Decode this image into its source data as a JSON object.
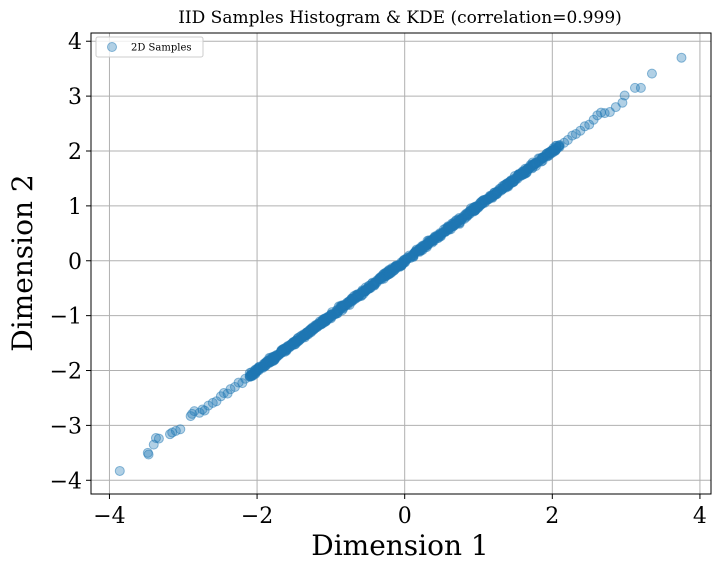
{
  "chart_data": {
    "type": "scatter",
    "title": "IID Samples Histogram & KDE (correlation=0.999)",
    "xlabel": "Dimension 1",
    "ylabel": "Dimension 2",
    "xlim": [
      -4.25,
      4.15
    ],
    "ylim": [
      -4.25,
      4.15
    ],
    "xticks": [
      -4,
      -2,
      0,
      2,
      4
    ],
    "yticks": [
      -4,
      -3,
      -2,
      -1,
      0,
      1,
      2,
      3,
      4
    ],
    "xtick_labels": [
      "−4",
      "−2",
      "0",
      "2",
      "4"
    ],
    "ytick_labels": [
      "−4",
      "−3",
      "−2",
      "−1",
      "0",
      "1",
      "2",
      "3",
      "4"
    ],
    "grid": true,
    "legend": {
      "position": "upper-left",
      "entries": [
        "2D Samples"
      ]
    },
    "series": [
      {
        "name": "2D Samples",
        "color": "#1f77b4",
        "alpha": 0.35,
        "points": [
          [
            -3.86,
            -3.83
          ],
          [
            -3.48,
            -3.5
          ],
          [
            -3.47,
            -3.53
          ],
          [
            -3.4,
            -3.35
          ],
          [
            -3.37,
            -3.23
          ],
          [
            -3.33,
            -3.24
          ],
          [
            -3.18,
            -3.16
          ],
          [
            -3.15,
            -3.13
          ],
          [
            -3.1,
            -3.1
          ],
          [
            -3.04,
            -3.07
          ],
          [
            -2.9,
            -2.83
          ],
          [
            -2.88,
            -2.79
          ],
          [
            -2.85,
            -2.74
          ],
          [
            -2.78,
            -2.77
          ],
          [
            -2.74,
            -2.71
          ],
          [
            -2.71,
            -2.73
          ],
          [
            -2.66,
            -2.64
          ],
          [
            -2.6,
            -2.59
          ],
          [
            -2.55,
            -2.56
          ],
          [
            -2.49,
            -2.47
          ],
          [
            -2.45,
            -2.41
          ],
          [
            -2.4,
            -2.42
          ],
          [
            -2.36,
            -2.34
          ],
          [
            -2.3,
            -2.3
          ],
          [
            -2.25,
            -2.22
          ],
          [
            -2.2,
            -2.23
          ],
          [
            -2.16,
            -2.15
          ],
          [
            -2.1,
            -2.1
          ],
          [
            2.1,
            2.11
          ],
          [
            2.16,
            2.15
          ],
          [
            2.21,
            2.2
          ],
          [
            2.27,
            2.28
          ],
          [
            2.32,
            2.31
          ],
          [
            2.38,
            2.37
          ],
          [
            2.44,
            2.45
          ],
          [
            2.5,
            2.48
          ],
          [
            2.56,
            2.57
          ],
          [
            2.61,
            2.65
          ],
          [
            2.66,
            2.7
          ],
          [
            2.71,
            2.69
          ],
          [
            2.78,
            2.71
          ],
          [
            2.86,
            2.8
          ],
          [
            2.95,
            2.88
          ],
          [
            2.98,
            3.01
          ],
          [
            3.12,
            3.15
          ],
          [
            3.2,
            3.15
          ],
          [
            3.35,
            3.41
          ],
          [
            3.75,
            3.7
          ]
        ],
        "dense_band": {
          "x_range": [
            -2.1,
            2.1
          ],
          "slope": 0.999,
          "intercept": 0.0,
          "spread": 0.045,
          "count": 900,
          "seed": 7
        }
      }
    ]
  }
}
